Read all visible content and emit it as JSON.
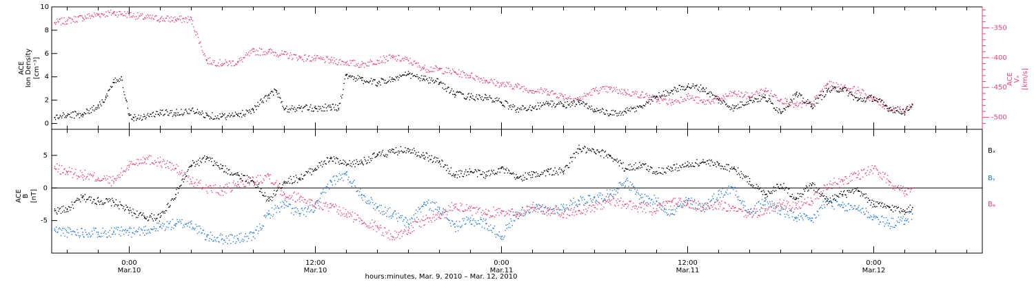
{
  "chart_data": [
    {
      "type": "scatter",
      "panel": "ion-density-speed",
      "ylabel_left": [
        "ACE",
        "Ion Density",
        "[cm⁻³]"
      ],
      "ylabel_right": [
        "ACE",
        "Vₓ",
        "[km/s]"
      ],
      "ylim_left": [
        -0.5,
        10
      ],
      "yticks_left": [
        "0",
        "2",
        "4",
        "6",
        "8",
        "10"
      ],
      "ylim_right": [
        -520,
        -315
      ],
      "yticks_right": [
        "-350",
        "-400",
        "-450",
        "-500"
      ],
      "colors": {
        "density": "#000000",
        "speed": "#e8416f"
      },
      "series": [
        {
          "name": "",
          "color": "#000000",
          "axis": "left",
          "x": [
            -4.8,
            -4,
            -3,
            -2,
            -1.5,
            -1,
            -0.5,
            -0.2,
            0,
            0.3,
            1,
            2,
            3,
            4,
            5,
            6,
            7,
            8,
            9,
            9.5,
            10,
            11,
            12,
            13,
            13.5,
            14,
            15,
            16,
            17,
            18,
            19,
            20,
            21,
            22,
            23,
            24,
            25,
            26,
            27,
            28,
            29,
            30,
            31,
            32,
            33,
            34,
            35,
            36,
            37,
            38,
            39,
            40,
            41,
            42,
            43,
            44,
            45,
            46,
            47,
            48,
            49,
            50,
            50.5
          ],
          "y": [
            0.5,
            0.7,
            0.8,
            1.5,
            2.2,
            3.5,
            4,
            2,
            0.7,
            0.5,
            0.6,
            0.9,
            0.9,
            1.1,
            0.7,
            0.6,
            0.7,
            1.2,
            2.4,
            2.8,
            1.2,
            1.3,
            1.3,
            1.4,
            1.3,
            4.2,
            3.7,
            3.5,
            3.8,
            4.2,
            3.8,
            3.5,
            2.5,
            2.3,
            2.2,
            1.8,
            1.2,
            1.4,
            1.7,
            1.6,
            1.8,
            1.2,
            0.8,
            1,
            1.4,
            2.3,
            2.8,
            3.2,
            3,
            2,
            1.3,
            2,
            2.2,
            1,
            2.5,
            1.5,
            2.8,
            3,
            2,
            2.2,
            1.3,
            1,
            1.6
          ]
        },
        {
          "name": "",
          "color": "#e8416f",
          "axis": "right",
          "x": [
            -4.8,
            -4,
            -3,
            -2,
            -1,
            0,
            1,
            2,
            3,
            4,
            5,
            6,
            7,
            8,
            9,
            10,
            11,
            12,
            13,
            14,
            15,
            16,
            17,
            18,
            19,
            20,
            21,
            22,
            23,
            24,
            25,
            26,
            27,
            28,
            29,
            30,
            31,
            32,
            33,
            34,
            35,
            36,
            37,
            38,
            39,
            40,
            41,
            42,
            43,
            44,
            45,
            46,
            47,
            48,
            49,
            50,
            50.5
          ],
          "y": [
            -342,
            -338,
            -333,
            -328,
            -325,
            -328,
            -333,
            -335,
            -336,
            -336,
            -405,
            -410,
            -408,
            -390,
            -390,
            -395,
            -400,
            -402,
            -405,
            -408,
            -412,
            -405,
            -400,
            -405,
            -418,
            -420,
            -425,
            -430,
            -438,
            -445,
            -448,
            -455,
            -457,
            -465,
            -470,
            -455,
            -453,
            -458,
            -462,
            -470,
            -475,
            -465,
            -475,
            -470,
            -460,
            -465,
            -455,
            -470,
            -480,
            -478,
            -445,
            -450,
            -455,
            -470,
            -485,
            -490,
            -478
          ]
        }
      ]
    },
    {
      "type": "scatter",
      "panel": "magnetic-field",
      "ylabel": [
        "ACE",
        "B",
        "[nT]"
      ],
      "ylim": [
        -10,
        9
      ],
      "yticks": [
        "5",
        "0",
        "-5"
      ],
      "zero_line": true,
      "legend_position": "right",
      "legend": [
        {
          "label": "Bₓ",
          "color": "#000000"
        },
        {
          "label": "Bᵧ",
          "color": "#1f78d1"
        },
        {
          "label": "Bᵩ",
          "color": "#e8416f"
        }
      ],
      "series": [
        {
          "name": "Bₓ",
          "color": "#000000",
          "x": [
            -4.8,
            -4,
            -3,
            -2,
            -1,
            0,
            1,
            2,
            3,
            4,
            5,
            6,
            7,
            8,
            9,
            10,
            11,
            12,
            13,
            14,
            15,
            16,
            17,
            18,
            19,
            20,
            21,
            22,
            23,
            24,
            25,
            26,
            27,
            28,
            29,
            30,
            31,
            32,
            33,
            34,
            35,
            36,
            37,
            38,
            39,
            40,
            41,
            42,
            43,
            44,
            45,
            46,
            47,
            48,
            49,
            50,
            50.5
          ],
          "y": [
            -3.5,
            -3.3,
            -1.5,
            -2,
            -2.2,
            -3.5,
            -4.5,
            -4.5,
            -1,
            3.5,
            4.5,
            3,
            2,
            1,
            -2,
            1,
            1.5,
            3,
            4.5,
            3.5,
            4,
            5,
            5.5,
            6,
            5,
            4,
            2,
            2.5,
            2,
            3,
            1.5,
            2,
            2.5,
            2.5,
            6,
            5.5,
            5,
            3,
            3.5,
            2.5,
            3,
            3.5,
            4,
            3.5,
            3,
            1,
            -1,
            0.5,
            -1.5,
            0.5,
            -2,
            -1,
            -0.5,
            -2.5,
            -3,
            -3.5,
            -3
          ]
        },
        {
          "name": "Bᵧ",
          "color": "#1f78d1",
          "x": [
            -4.8,
            -4,
            -3,
            -2,
            -1,
            0,
            1,
            2,
            3,
            4,
            5,
            6,
            7,
            8,
            9,
            10,
            11,
            12,
            13,
            14,
            15,
            16,
            17,
            18,
            19,
            20,
            21,
            22,
            23,
            24,
            25,
            26,
            27,
            28,
            29,
            30,
            31,
            32,
            33,
            34,
            35,
            36,
            37,
            38,
            39,
            40,
            41,
            42,
            43,
            44,
            45,
            46,
            47,
            48,
            49,
            50,
            50.5
          ],
          "y": [
            -6.5,
            -6.8,
            -6.8,
            -6.8,
            -6.8,
            -6.8,
            -6.5,
            -6,
            -5.5,
            -5.5,
            -7.5,
            -7.8,
            -7.8,
            -7.5,
            -4,
            -2.5,
            -4,
            -3,
            1,
            2,
            -1,
            -3,
            -4,
            -5.5,
            -2.5,
            -3,
            -6,
            -5,
            -5.5,
            -7.5,
            -4,
            -3,
            -3.5,
            -3,
            -2,
            -1.5,
            -1,
            1,
            -1.5,
            -2,
            -4,
            -2,
            -3,
            -1,
            0,
            -4,
            -2,
            -3.5,
            -4.5,
            -5,
            -2,
            -3,
            -3,
            -4.5,
            -5.5,
            -5,
            -4
          ]
        },
        {
          "name": "Bᵩ",
          "color": "#e8416f",
          "x": [
            -4.8,
            -4,
            -3,
            -2,
            -1,
            0,
            1,
            2,
            3,
            4,
            5,
            6,
            7,
            8,
            9,
            10,
            11,
            12,
            13,
            14,
            15,
            16,
            17,
            18,
            19,
            20,
            21,
            22,
            23,
            24,
            25,
            26,
            27,
            28,
            29,
            30,
            31,
            32,
            33,
            34,
            35,
            36,
            37,
            38,
            39,
            40,
            41,
            42,
            43,
            44,
            45,
            46,
            47,
            48,
            49,
            50,
            50.5
          ],
          "y": [
            3,
            2.5,
            2,
            1.5,
            1,
            3.5,
            4.5,
            4,
            3,
            1,
            0,
            -0.5,
            0.5,
            1,
            2,
            -1,
            -1.5,
            -2.5,
            -3,
            -4,
            -5,
            -6,
            -7.5,
            -6.5,
            -5,
            -4.5,
            -2.5,
            -3.5,
            -4,
            -3.5,
            -4,
            -3,
            -3.5,
            -4,
            -3.5,
            -3,
            -2,
            -2.5,
            -3,
            -3.5,
            -2,
            -2.5,
            -3,
            -2.5,
            -3.5,
            -4,
            -3.5,
            -2.5,
            -3,
            -2,
            0.5,
            1,
            2,
            3,
            1,
            -0.5,
            0
          ]
        }
      ]
    }
  ],
  "x_axis": {
    "xlim_hours": [
      -5,
      55
    ],
    "ticks": [
      {
        "hour": 0,
        "time": "0:00",
        "date": "Mar.10"
      },
      {
        "hour": 12,
        "time": "12:00",
        "date": "Mar.10"
      },
      {
        "hour": 24,
        "time": "0:00",
        "date": "Mar.11"
      },
      {
        "hour": 36,
        "time": "12:00",
        "date": "Mar.11"
      },
      {
        "hour": 48,
        "time": "0:00",
        "date": "Mar.12"
      }
    ],
    "xlabel": "hours:minutes, Mar. 9, 2010 – Mar. 12, 2010"
  }
}
